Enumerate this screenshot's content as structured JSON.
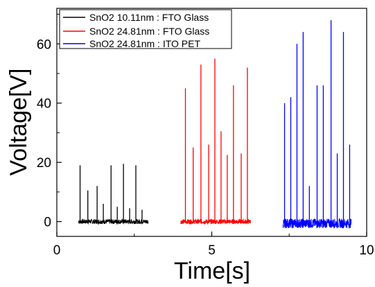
{
  "chart_data": {
    "type": "line",
    "xlabel": "Time[s]",
    "ylabel": "Voltage[V]",
    "xlim": [
      0,
      10
    ],
    "ylim": [
      -5,
      72
    ],
    "x_ticks": [
      0,
      5,
      10
    ],
    "y_ticks": [
      0,
      20,
      40,
      60
    ],
    "grid": false,
    "legend_position": "top-left",
    "series": [
      {
        "name": "SnO2 10.11nm : FTO Glass",
        "color": "#000000",
        "baseline_range": [
          0.7,
          2.95
        ],
        "spikes": [
          [
            0.75,
            19
          ],
          [
            1.0,
            10.5
          ],
          [
            1.3,
            12
          ],
          [
            1.5,
            6
          ],
          [
            1.75,
            19
          ],
          [
            1.95,
            5
          ],
          [
            2.15,
            19.5
          ],
          [
            2.35,
            4.5
          ],
          [
            2.55,
            19
          ],
          [
            2.75,
            4
          ]
        ]
      },
      {
        "name": "SnO2 24.81nm : FTO Glass",
        "color": "#ff0000",
        "baseline_range": [
          4.0,
          6.25
        ],
        "spikes": [
          [
            4.15,
            45
          ],
          [
            4.4,
            25
          ],
          [
            4.65,
            53
          ],
          [
            4.9,
            26
          ],
          [
            5.1,
            55
          ],
          [
            5.3,
            30.5
          ],
          [
            5.5,
            22.5
          ],
          [
            5.7,
            46
          ],
          [
            5.95,
            23
          ],
          [
            6.15,
            52
          ]
        ]
      },
      {
        "name": "SnO2 24.81nm : ITO PET",
        "color": "#0000ff",
        "baseline_range": [
          7.3,
          9.5
        ],
        "spikes": [
          [
            7.35,
            40
          ],
          [
            7.55,
            42
          ],
          [
            7.75,
            60
          ],
          [
            7.95,
            64
          ],
          [
            8.15,
            12
          ],
          [
            8.4,
            46
          ],
          [
            8.6,
            46
          ],
          [
            8.85,
            68
          ],
          [
            9.05,
            23
          ],
          [
            9.25,
            64
          ],
          [
            9.45,
            26
          ]
        ]
      }
    ]
  }
}
